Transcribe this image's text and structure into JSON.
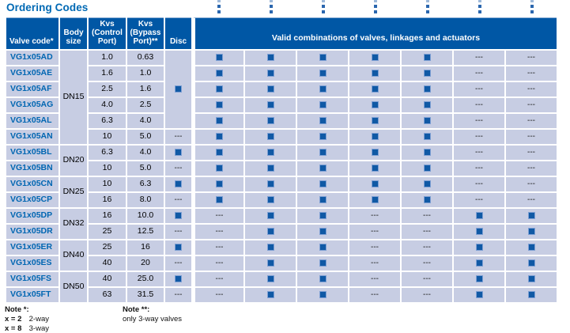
{
  "title": "Ordering Codes",
  "colors": {
    "title_text": "#0069B4",
    "header_bg": "#0057A5",
    "row_bg": "#C7CDE3",
    "valve_code_text": "#0066B2",
    "marker_fill": "#1059A5",
    "marker_border": "#7FA0D4",
    "leader_dot": "#2A66AE"
  },
  "symbols": {
    "valid_marker": "filled-square",
    "not_available": "---"
  },
  "table": {
    "combo_column_count": 7,
    "headers": {
      "valve_code": "Valve code*",
      "body_size": "Body size",
      "kvs_control": "Kvs (Control Port)",
      "kvs_bypass": "Kvs (Bypass Port)**",
      "disc": "Disc",
      "combinations": "Valid combinations of valves, linkages and actuators"
    },
    "rows": [
      {
        "code": "VG1x05AD",
        "body": "DN15",
        "body_span": 6,
        "kvs_control": "1.0",
        "kvs_bypass": "0.63",
        "disc": "sq",
        "disc_span": 5,
        "combos": [
          "sq",
          "sq",
          "sq",
          "sq",
          "sq",
          "dash",
          "dash"
        ]
      },
      {
        "code": "VG1x05AE",
        "kvs_control": "1.6",
        "kvs_bypass": "1.0",
        "combos": [
          "sq",
          "sq",
          "sq",
          "sq",
          "sq",
          "dash",
          "dash"
        ]
      },
      {
        "code": "VG1x05AF",
        "kvs_control": "2.5",
        "kvs_bypass": "1.6",
        "combos": [
          "sq",
          "sq",
          "sq",
          "sq",
          "sq",
          "dash",
          "dash"
        ]
      },
      {
        "code": "VG1x05AG",
        "kvs_control": "4.0",
        "kvs_bypass": "2.5",
        "combos": [
          "sq",
          "sq",
          "sq",
          "sq",
          "sq",
          "dash",
          "dash"
        ]
      },
      {
        "code": "VG1x05AL",
        "kvs_control": "6.3",
        "kvs_bypass": "4.0",
        "combos": [
          "sq",
          "sq",
          "sq",
          "sq",
          "sq",
          "dash",
          "dash"
        ]
      },
      {
        "code": "VG1x05AN",
        "kvs_control": "10",
        "kvs_bypass": "5.0",
        "disc": "dash",
        "combos": [
          "sq",
          "sq",
          "sq",
          "sq",
          "sq",
          "dash",
          "dash"
        ]
      },
      {
        "code": "VG1x05BL",
        "body": "DN20",
        "body_span": 2,
        "kvs_control": "6.3",
        "kvs_bypass": "4.0",
        "disc": "sq",
        "combos": [
          "sq",
          "sq",
          "sq",
          "sq",
          "sq",
          "dash",
          "dash"
        ]
      },
      {
        "code": "VG1x05BN",
        "kvs_control": "10",
        "kvs_bypass": "5.0",
        "disc": "dash",
        "combos": [
          "sq",
          "sq",
          "sq",
          "sq",
          "sq",
          "dash",
          "dash"
        ]
      },
      {
        "code": "VG1x05CN",
        "body": "DN25",
        "body_span": 2,
        "kvs_control": "10",
        "kvs_bypass": "6.3",
        "disc": "sq",
        "combos": [
          "sq",
          "sq",
          "sq",
          "sq",
          "sq",
          "dash",
          "dash"
        ]
      },
      {
        "code": "VG1x05CP",
        "kvs_control": "16",
        "kvs_bypass": "8.0",
        "disc": "dash",
        "combos": [
          "sq",
          "sq",
          "sq",
          "sq",
          "sq",
          "dash",
          "dash"
        ]
      },
      {
        "code": "VG1x05DP",
        "body": "DN32",
        "body_span": 2,
        "kvs_control": "16",
        "kvs_bypass": "10.0",
        "disc": "sq",
        "combos": [
          "dash",
          "sq",
          "sq",
          "dash",
          "dash",
          "sq",
          "sq"
        ]
      },
      {
        "code": "VG1x05DR",
        "kvs_control": "25",
        "kvs_bypass": "12.5",
        "disc": "dash",
        "combos": [
          "dash",
          "sq",
          "sq",
          "dash",
          "dash",
          "sq",
          "sq"
        ]
      },
      {
        "code": "VG1x05ER",
        "body": "DN40",
        "body_span": 2,
        "kvs_control": "25",
        "kvs_bypass": "16",
        "disc": "sq",
        "combos": [
          "dash",
          "sq",
          "sq",
          "dash",
          "dash",
          "sq",
          "sq"
        ]
      },
      {
        "code": "VG1x05ES",
        "kvs_control": "40",
        "kvs_bypass": "20",
        "disc": "dash",
        "combos": [
          "dash",
          "sq",
          "sq",
          "dash",
          "dash",
          "sq",
          "sq"
        ]
      },
      {
        "code": "VG1x05FS",
        "body": "DN50",
        "body_span": 2,
        "kvs_control": "40",
        "kvs_bypass": "25.0",
        "disc": "sq",
        "combos": [
          "dash",
          "sq",
          "sq",
          "dash",
          "dash",
          "sq",
          "sq"
        ]
      },
      {
        "code": "VG1x05FT",
        "kvs_control": "63",
        "kvs_bypass": "31.5",
        "disc": "dash",
        "combos": [
          "dash",
          "sq",
          "sq",
          "dash",
          "dash",
          "sq",
          "sq"
        ]
      }
    ]
  },
  "notes": {
    "left": {
      "title": "Note *:",
      "lines": [
        {
          "key": "x = 2",
          "text": "2-way"
        },
        {
          "key": "x = 8",
          "text": "3-way"
        }
      ]
    },
    "right": {
      "title": "Note **:",
      "text": "only 3-way valves"
    }
  }
}
